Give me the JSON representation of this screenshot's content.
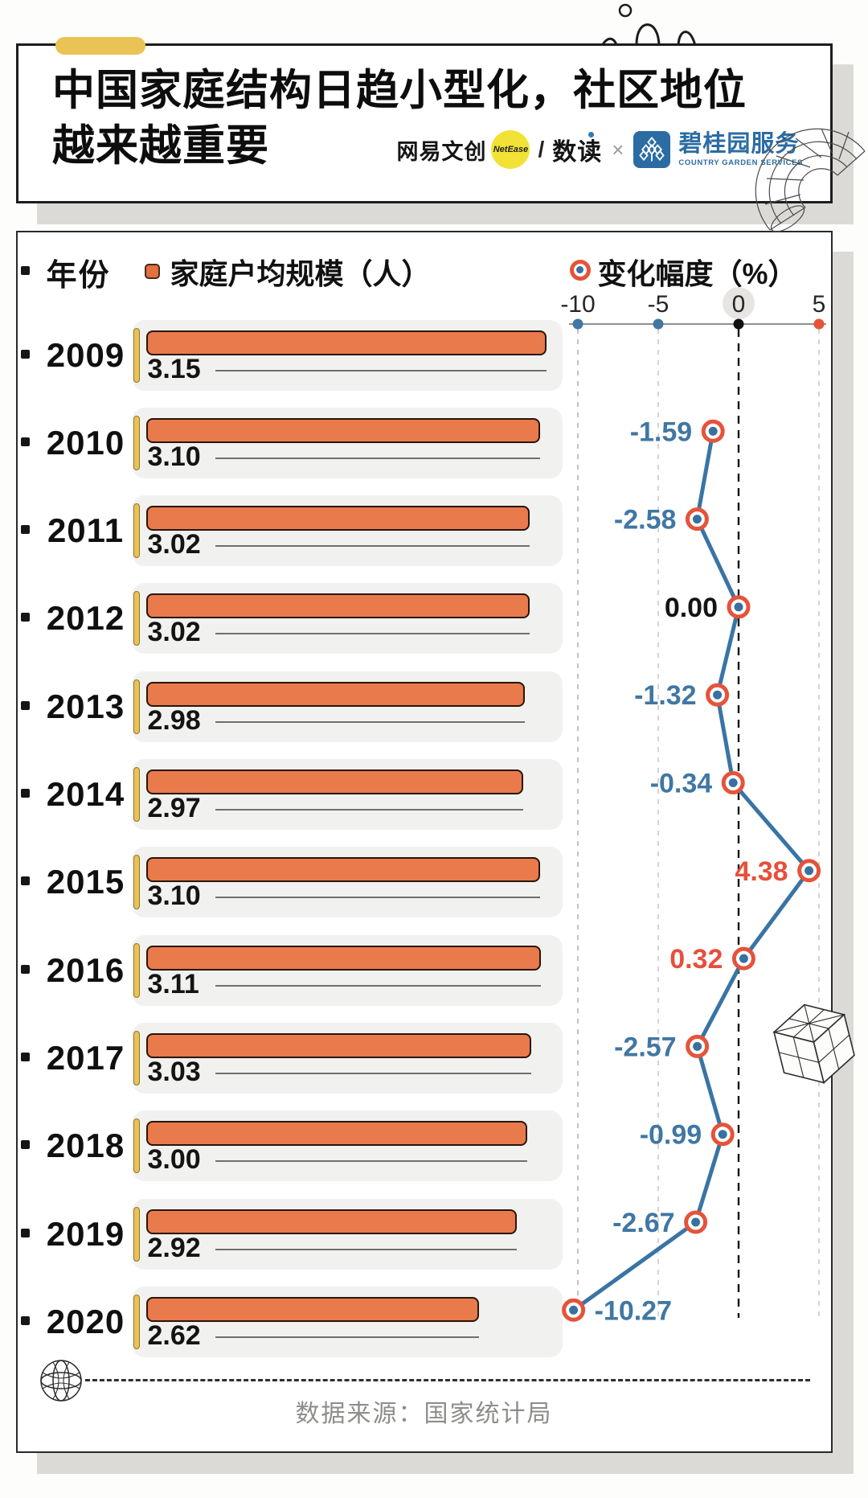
{
  "title_card": {
    "line1": "中国家庭结构日趋小型化，社区地位",
    "line2": "越来越重要",
    "brand": {
      "netease_text": "网易文创",
      "netease_badge": "NetEase",
      "slash": "/",
      "shudu": "数读",
      "times": "×",
      "cgs_name": "碧桂园服务",
      "cgs_sub": "COUNTRY GARDEN SERVICES"
    }
  },
  "legend": {
    "year_label": "年份",
    "bar_label": "家庭户均规模（人）",
    "line_label": "变化幅度（%）"
  },
  "footer": {
    "source": "数据来源：国家统计局"
  },
  "colors": {
    "bar_orange": "#e87a4b",
    "bar_border": "#2a150a",
    "panel_gray": "#f1f1ef",
    "accent_yellow": "#e9c355",
    "line_blue": "#3a74a4",
    "dot_blue": "#38719f",
    "ring_red": "#e5533a",
    "label_blue": "#4077a3",
    "label_red": "#e5503c",
    "label_black": "#141414",
    "axis_gray": "#8f8f8f",
    "grid_gray": "#b3b3b3",
    "grid_light": "#c9c9c9",
    "grid_black": "#141414"
  },
  "chart_data": {
    "type": "bar+line",
    "title": "中国家庭结构日趋小型化，社区地位越来越重要",
    "categories": [
      "2009",
      "2010",
      "2011",
      "2012",
      "2013",
      "2014",
      "2015",
      "2016",
      "2017",
      "2018",
      "2019",
      "2020"
    ],
    "series": [
      {
        "name": "家庭户均规模（人）",
        "type": "bar",
        "values": [
          3.15,
          3.1,
          3.02,
          3.02,
          2.98,
          2.97,
          3.1,
          3.11,
          3.03,
          3.0,
          2.92,
          2.62
        ],
        "value_labels": [
          "3.15",
          "3.10",
          "3.02",
          "3.02",
          "2.98",
          "2.97",
          "3.10",
          "3.11",
          "3.03",
          "3.00",
          "2.92",
          "2.62"
        ]
      },
      {
        "name": "变化幅度（%）",
        "type": "line",
        "values": [
          null,
          -1.59,
          -2.58,
          0.0,
          -1.32,
          -0.34,
          4.38,
          0.32,
          -2.57,
          -0.99,
          -2.67,
          -10.27
        ],
        "value_labels": [
          null,
          "-1.59",
          "-2.58",
          "0.00",
          "-1.32",
          "-0.34",
          "4.38",
          "0.32",
          "-2.57",
          "-0.99",
          "-2.67",
          "-10.27"
        ]
      }
    ],
    "bar_ref_max": 3.15,
    "change_axis": {
      "ticks": [
        -10,
        -5,
        0,
        5
      ],
      "tick_labels": [
        "-10",
        "-5",
        "0",
        "5"
      ],
      "min": -10,
      "max": 5
    },
    "source": "数据来源：国家统计局",
    "grid": true,
    "legend_position": "top"
  }
}
